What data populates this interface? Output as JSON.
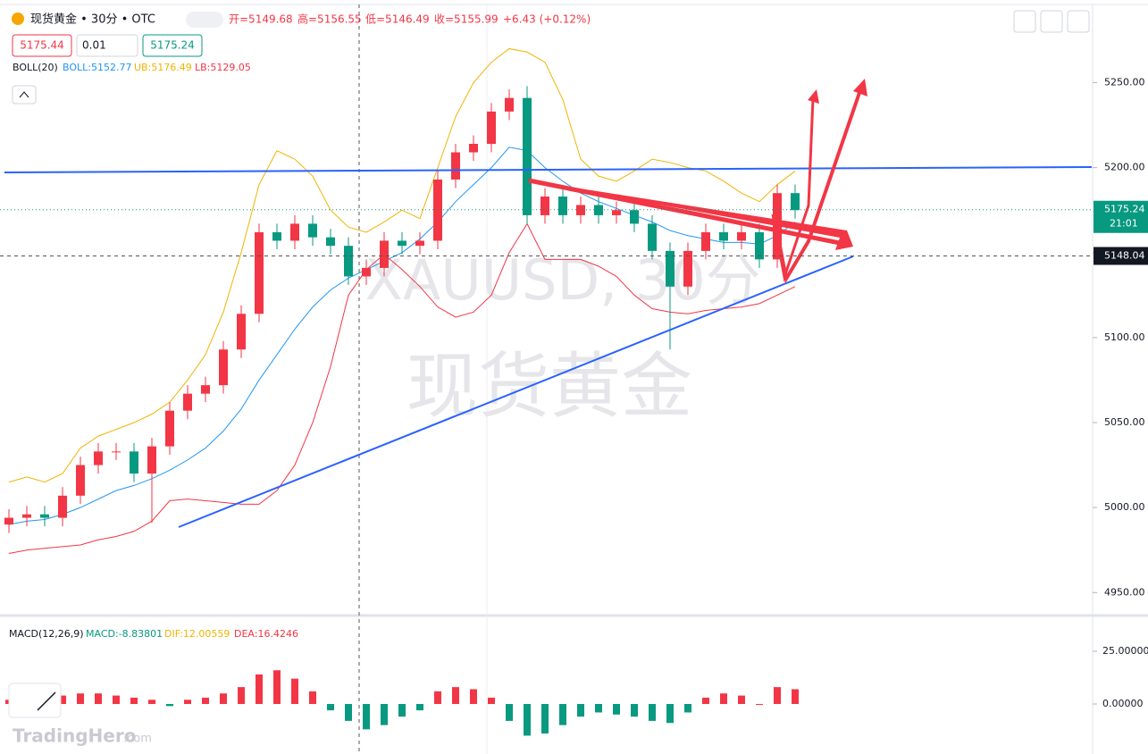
{
  "header": {
    "symbol": "现货黄金 • 30分 • OTC",
    "open": "开=5149.68",
    "high": "高=5156.55",
    "low": "低=5146.49",
    "close": "收=5155.99",
    "change": "+6.43 (+0.12%)",
    "sell": "5175.44",
    "qty": "0.01",
    "buy": "5175.24"
  },
  "indicator": {
    "name": "BOLL(20)",
    "mid": "BOLL:5152.77",
    "ub": "UB:5176.49",
    "lb": "LB:5129.05"
  },
  "watermark": {
    "symbol": "XAUUSD, 30分",
    "name": "现货黄金"
  },
  "logo": {
    "brand": "TradingHero",
    "suffix": ".com"
  },
  "chart_data": {
    "type": "candlestick",
    "ylim": [
      4937,
      5296
    ],
    "yticks": [
      {
        "value": 5250,
        "label": "5250.00"
      },
      {
        "value": 5200,
        "label": "5200.00"
      },
      {
        "value": 5150,
        "label": "5150.00"
      },
      {
        "value": 5100,
        "label": "5100.00"
      },
      {
        "value": 5050,
        "label": "5050.00"
      },
      {
        "value": 5000,
        "label": "5000.00"
      },
      {
        "value": 4950,
        "label": "4950.00"
      }
    ],
    "last_price": {
      "value": 5175.24,
      "label": "5175.24"
    },
    "countdown": "21:01",
    "crosshair": {
      "value": 5148.04,
      "label": "5148.04"
    },
    "up_color": "#f23645",
    "down_color": "#089981",
    "open": [
      4990,
      4994,
      4996,
      4994,
      5007,
      5025,
      5033,
      5033,
      5020,
      5036,
      5057,
      5067,
      5072,
      5093,
      5114,
      5162,
      5157,
      5167,
      5159,
      5154,
      5136,
      5141,
      5157,
      5154,
      5157,
      5193,
      5209,
      5214,
      5233,
      5241,
      5172,
      5183,
      5172,
      5178,
      5172,
      5175,
      5167,
      5151,
      5130,
      5151,
      5162,
      5157,
      5162,
      5146,
      5185
    ],
    "high": [
      4999,
      5001,
      5001,
      5012,
      5030,
      5038,
      5038,
      5038,
      5041,
      5062,
      5072,
      5077,
      5098,
      5119,
      5167,
      5167,
      5172,
      5172,
      5164,
      5159,
      5146,
      5162,
      5162,
      5162,
      5198,
      5214,
      5219,
      5238,
      5246,
      5248,
      5188,
      5188,
      5183,
      5183,
      5180,
      5180,
      5172,
      5156,
      5156,
      5167,
      5167,
      5167,
      5167,
      5190,
      5190
    ],
    "low": [
      4985,
      4989,
      4989,
      4989,
      5002,
      5020,
      5028,
      5015,
      4991,
      5031,
      5052,
      5062,
      5067,
      5088,
      5109,
      5152,
      5152,
      5154,
      5149,
      5131,
      5131,
      5136,
      5149,
      5149,
      5152,
      5188,
      5204,
      5209,
      5228,
      5167,
      5167,
      5167,
      5167,
      5167,
      5167,
      5162,
      5146,
      5093,
      5125,
      5146,
      5152,
      5152,
      5141,
      5141,
      5170
    ],
    "close": [
      4994,
      4996,
      4994,
      5007,
      5025,
      5033,
      5033,
      5020,
      5036,
      5057,
      5067,
      5072,
      5093,
      5114,
      5162,
      5157,
      5167,
      5159,
      5154,
      5136,
      5141,
      5157,
      5154,
      5157,
      5193,
      5209,
      5214,
      5233,
      5241,
      5172,
      5183,
      5172,
      5178,
      5172,
      5175,
      5167,
      5151,
      5130,
      5151,
      5162,
      5157,
      5162,
      5146,
      5185,
      5175
    ],
    "boll_upper": [
      5015,
      5018,
      5015,
      5020,
      5035,
      5042,
      5046,
      5050,
      5055,
      5062,
      5075,
      5090,
      5115,
      5150,
      5190,
      5210,
      5205,
      5195,
      5175,
      5165,
      5162,
      5168,
      5175,
      5170,
      5200,
      5230,
      5250,
      5262,
      5270,
      5268,
      5262,
      5240,
      5205,
      5195,
      5192,
      5198,
      5205,
      5203,
      5200,
      5198,
      5192,
      5185,
      5180,
      5190,
      5198
    ],
    "boll_mid": [
      4990,
      4992,
      4993,
      4996,
      5000,
      5005,
      5010,
      5013,
      5017,
      5022,
      5028,
      5035,
      5045,
      5058,
      5075,
      5090,
      5105,
      5118,
      5128,
      5135,
      5140,
      5145,
      5150,
      5158,
      5168,
      5180,
      5190,
      5200,
      5212,
      5210,
      5200,
      5192,
      5185,
      5180,
      5176,
      5172,
      5168,
      5163,
      5160,
      5158,
      5156,
      5156,
      5155,
      5160,
      5168
    ],
    "boll_lower": [
      4973,
      4975,
      4976,
      4977,
      4978,
      4981,
      4983,
      4986,
      4992,
      5004,
      5005,
      5004,
      5003,
      5002,
      5002,
      5010,
      5025,
      5050,
      5083,
      5125,
      5140,
      5149,
      5140,
      5130,
      5118,
      5112,
      5115,
      5125,
      5150,
      5167,
      5146,
      5146,
      5146,
      5142,
      5136,
      5125,
      5117,
      5115,
      5114,
      5116,
      5117,
      5118,
      5120,
      5125,
      5130
    ],
    "macd": {
      "title": "MACD(12,26,9)",
      "macd": "MACD:-8.83801",
      "dif": "DIF:12.00559",
      "dea": "DEA:16.4246",
      "y2lim": [
        -23.7,
        41.5
      ],
      "y2ticks": [
        {
          "value": 25,
          "label": "25.00000"
        },
        {
          "value": 0,
          "label": "0.00000"
        }
      ],
      "hist": [
        2,
        3,
        4,
        4,
        5,
        5,
        4,
        3,
        2,
        -1,
        2,
        3,
        5,
        8,
        14,
        16,
        12,
        6,
        -3,
        -8,
        -12,
        -10,
        -6,
        -3,
        6,
        8,
        7,
        3,
        -8,
        -15,
        -14,
        -10,
        -6,
        -4,
        -5,
        -6,
        -8,
        -9,
        -4,
        3,
        5,
        4,
        0,
        8,
        7
      ]
    }
  }
}
